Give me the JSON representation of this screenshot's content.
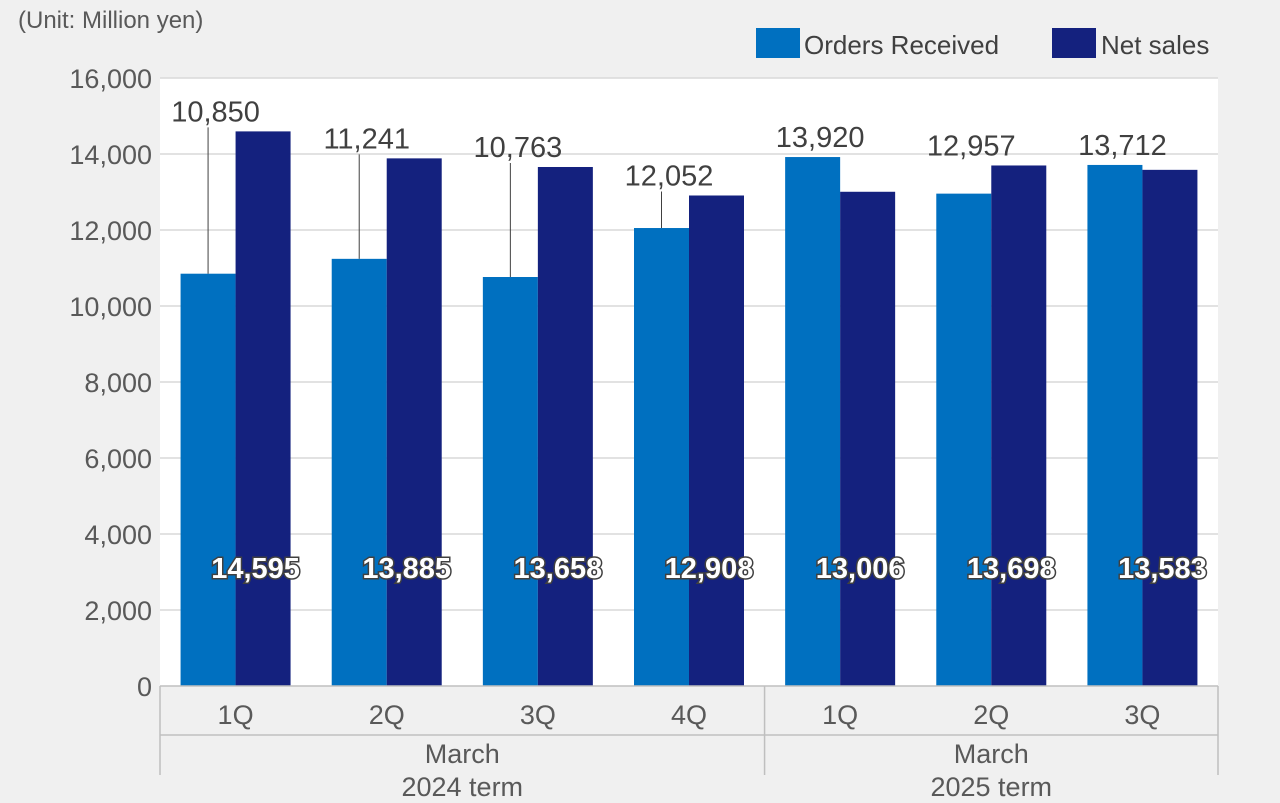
{
  "unit_label": "(Unit: Million yen)",
  "colors": {
    "orders": "#0070c0",
    "sales": "#14217e",
    "plot_bg": "#ffffff",
    "page_bg": "#f0f0f0",
    "grid": "#d9d9d9"
  },
  "chart_data": {
    "type": "bar",
    "ylim": [
      0,
      16000
    ],
    "yticks": [
      "0",
      "2,000",
      "4,000",
      "6,000",
      "8,000",
      "10,000",
      "12,000",
      "14,000",
      "16,000"
    ],
    "categories": [
      "1Q",
      "2Q",
      "3Q",
      "4Q",
      "1Q",
      "2Q",
      "3Q"
    ],
    "groups": [
      {
        "label_line1": "March",
        "label_line2": "2024 term",
        "count": 4
      },
      {
        "label_line1": "March",
        "label_line2": "2025 term",
        "count": 3
      }
    ],
    "series": [
      {
        "name": "Orders Received",
        "values": [
          10850,
          11241,
          10763,
          12052,
          13920,
          12957,
          13712
        ],
        "labels": [
          "10,850",
          "11,241",
          "10,763",
          "12,052",
          "13,920",
          "12,957",
          "13,712"
        ]
      },
      {
        "name": "Net sales",
        "values": [
          14595,
          13885,
          13658,
          12908,
          13006,
          13698,
          13583
        ],
        "labels": [
          "14,595",
          "13,885",
          "13,658",
          "12,908",
          "13,006",
          "13,698",
          "13,583"
        ]
      }
    ],
    "legend_position": "top-right",
    "grid": true
  }
}
